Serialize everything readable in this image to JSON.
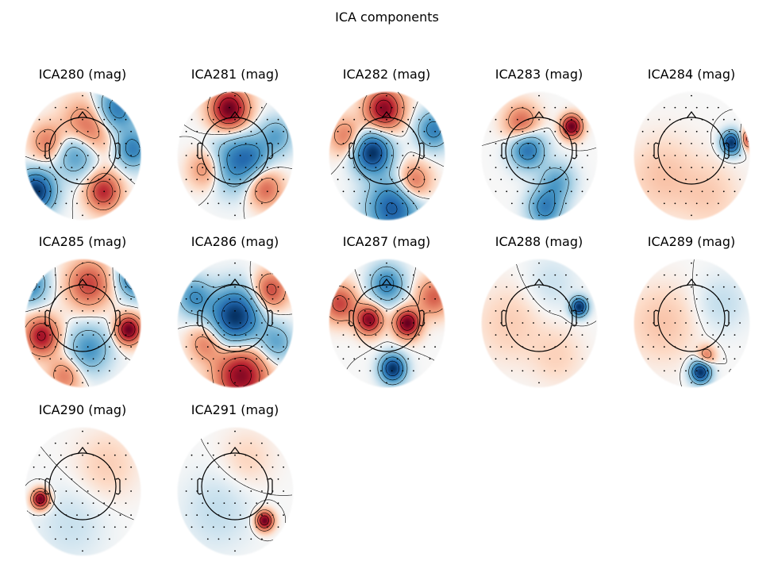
{
  "figure": {
    "title": "ICA components"
  },
  "chart_data": {
    "type": "heatmap",
    "title": "ICA components",
    "colormap": "RdBu_r",
    "color_negative": "#053061",
    "color_zero": "#f7f7f7",
    "color_positive": "#67001f",
    "contours": true,
    "sensors_shown": true,
    "head_outline": true,
    "grid": {
      "rows": 3,
      "cols": 5
    },
    "components": [
      {
        "name": "ICA280 (mag)",
        "sources": [
          [
            -0.8,
            -0.55,
            -1.0,
            0.22
          ],
          [
            0.55,
            0.7,
            -0.7,
            0.25
          ],
          [
            -0.1,
            0.05,
            -0.6,
            0.25
          ],
          [
            0.35,
            -0.55,
            0.7,
            0.2
          ],
          [
            0.1,
            0.4,
            0.6,
            0.3
          ],
          [
            -0.6,
            0.2,
            0.4,
            0.2
          ],
          [
            0.85,
            0.1,
            -0.6,
            0.2
          ]
        ]
      },
      {
        "name": "ICA281 (mag)",
        "sources": [
          [
            -0.1,
            0.72,
            1.0,
            0.22
          ],
          [
            0.0,
            -0.1,
            -0.6,
            0.3
          ],
          [
            0.5,
            -0.5,
            0.5,
            0.2
          ],
          [
            -0.5,
            -0.2,
            0.4,
            0.2
          ],
          [
            0.7,
            0.3,
            -0.4,
            0.2
          ],
          [
            0.3,
            0.0,
            -0.3,
            0.2
          ]
        ]
      },
      {
        "name": "ICA282 (mag)",
        "sources": [
          [
            -0.25,
            0.05,
            -1.0,
            0.22
          ],
          [
            -0.05,
            0.72,
            0.9,
            0.22
          ],
          [
            0.1,
            -0.8,
            -0.8,
            0.3
          ],
          [
            0.45,
            -0.4,
            0.5,
            0.2
          ],
          [
            0.8,
            0.4,
            -0.6,
            0.2
          ],
          [
            -0.7,
            0.3,
            0.4,
            0.2
          ]
        ]
      },
      {
        "name": "ICA283 (mag)",
        "sources": [
          [
            0.55,
            0.45,
            1.0,
            0.12
          ],
          [
            -0.2,
            0.1,
            -0.7,
            0.2
          ],
          [
            0.1,
            -0.8,
            -0.6,
            0.2
          ],
          [
            -0.3,
            0.5,
            0.5,
            0.2
          ],
          [
            0.3,
            -0.4,
            -0.4,
            0.2
          ]
        ]
      },
      {
        "name": "ICA284 (mag)",
        "sources": [
          [
            0.68,
            0.2,
            -1.0,
            0.12
          ],
          [
            0.95,
            0.25,
            0.6,
            0.1
          ],
          [
            -0.5,
            -0.3,
            0.15,
            0.4
          ],
          [
            0.3,
            -0.6,
            0.12,
            0.35
          ]
        ]
      },
      {
        "name": "ICA285 (mag)",
        "sources": [
          [
            0.78,
            -0.1,
            1.0,
            0.15
          ],
          [
            -0.7,
            -0.2,
            0.8,
            0.2
          ],
          [
            0.9,
            0.7,
            -0.8,
            0.2
          ],
          [
            -0.9,
            0.6,
            -0.6,
            0.2
          ],
          [
            0.1,
            0.6,
            0.6,
            0.25
          ],
          [
            0.1,
            -0.4,
            -0.5,
            0.25
          ],
          [
            -0.3,
            -0.8,
            0.4,
            0.2
          ]
        ]
      },
      {
        "name": "ICA286 (mag)",
        "sources": [
          [
            0.0,
            0.1,
            -1.0,
            0.3
          ],
          [
            0.1,
            -0.8,
            0.9,
            0.3
          ],
          [
            0.6,
            0.5,
            0.6,
            0.2
          ],
          [
            -0.7,
            0.4,
            -0.5,
            0.2
          ],
          [
            0.7,
            -0.3,
            -0.4,
            0.2
          ],
          [
            -0.5,
            -0.3,
            0.4,
            0.2
          ]
        ]
      },
      {
        "name": "ICA287 (mag)",
        "sources": [
          [
            0.35,
            0.0,
            1.0,
            0.15
          ],
          [
            -0.3,
            0.05,
            0.9,
            0.15
          ],
          [
            0.1,
            -0.7,
            -1.0,
            0.15
          ],
          [
            0.0,
            0.6,
            -0.6,
            0.2
          ],
          [
            -0.8,
            0.3,
            0.6,
            0.2
          ],
          [
            0.8,
            0.4,
            0.5,
            0.2
          ]
        ]
      },
      {
        "name": "ICA288 (mag)",
        "sources": [
          [
            0.68,
            0.25,
            -1.0,
            0.1
          ],
          [
            -0.5,
            0.0,
            0.12,
            0.4
          ],
          [
            0.3,
            -0.5,
            0.1,
            0.3
          ],
          [
            0.2,
            0.6,
            -0.1,
            0.3
          ]
        ]
      },
      {
        "name": "ICA289 (mag)",
        "sources": [
          [
            0.15,
            -0.75,
            -1.0,
            0.12
          ],
          [
            0.25,
            -0.5,
            0.4,
            0.1
          ],
          [
            -0.5,
            0.0,
            0.15,
            0.4
          ],
          [
            0.5,
            0.3,
            -0.12,
            0.3
          ]
        ]
      },
      {
        "name": "ICA290 (mag)",
        "sources": [
          [
            -0.72,
            -0.12,
            1.0,
            0.1
          ],
          [
            -0.2,
            -0.5,
            -0.1,
            0.4
          ],
          [
            0.4,
            0.4,
            0.12,
            0.35
          ]
        ]
      },
      {
        "name": "ICA291 (mag)",
        "sources": [
          [
            0.5,
            -0.45,
            1.0,
            0.1
          ],
          [
            -0.3,
            -0.3,
            -0.12,
            0.4
          ],
          [
            0.2,
            0.5,
            0.1,
            0.3
          ]
        ]
      }
    ]
  }
}
